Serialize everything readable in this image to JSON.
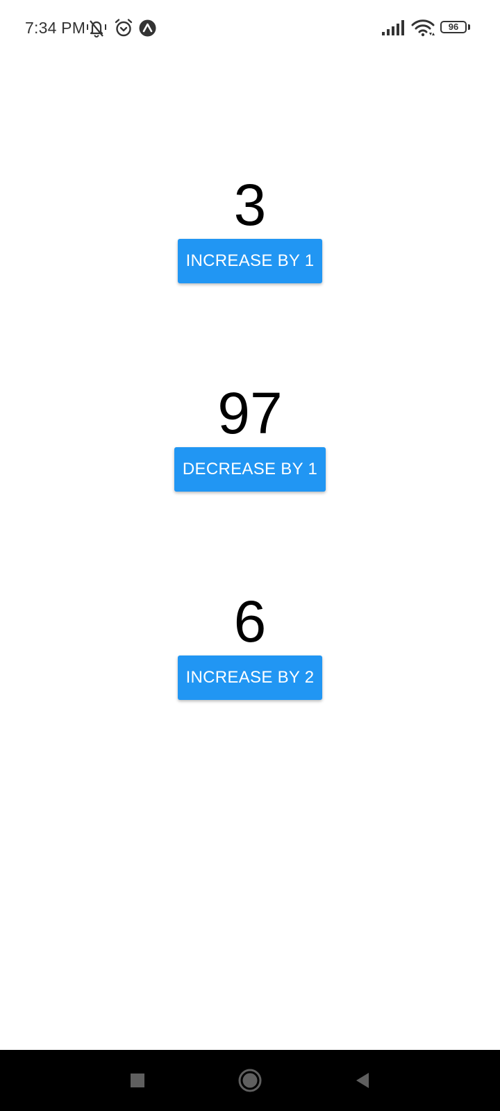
{
  "status_bar": {
    "time": "7:34 PM",
    "battery_level": "96",
    "icons": [
      "vibrate-mute-icon",
      "alarm-icon",
      "navigation-arrow-icon",
      "signal-icon",
      "wifi-icon",
      "battery-icon"
    ]
  },
  "counters": [
    {
      "value": "3",
      "button_label": "INCREASE BY 1"
    },
    {
      "value": "97",
      "button_label": "DECREASE BY 1"
    },
    {
      "value": "6",
      "button_label": "INCREASE BY 2"
    }
  ],
  "nav_bar": {
    "buttons": [
      "recents-square-icon",
      "home-circle-icon",
      "back-triangle-icon"
    ]
  },
  "colors": {
    "accent": "#2196f3",
    "button_text": "#ffffff",
    "background": "#ffffff",
    "nav_bar": "#000000",
    "status_text": "#333333"
  }
}
